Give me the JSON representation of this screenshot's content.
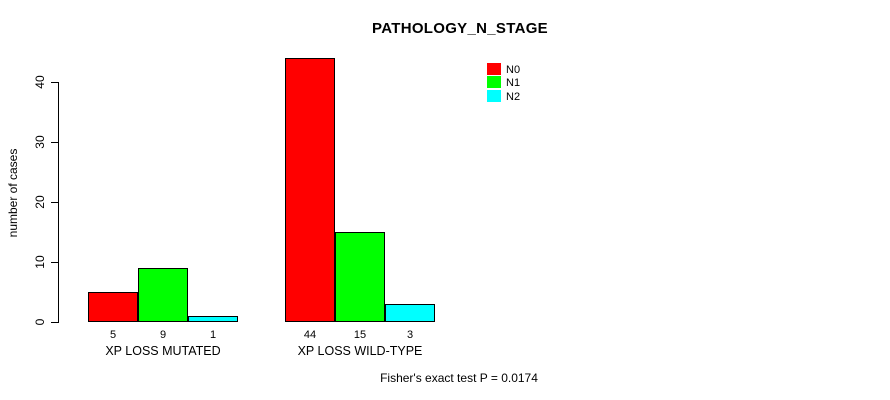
{
  "chart_data": {
    "type": "bar",
    "grouped": true,
    "title": "PATHOLOGY_N_STAGE",
    "categories": [
      "XP LOSS MUTATED",
      "XP LOSS WILD-TYPE"
    ],
    "series": [
      {
        "name": "N0",
        "color": "#FF0000",
        "values": [
          5,
          44
        ]
      },
      {
        "name": "N1",
        "color": "#00FF00",
        "values": [
          9,
          15
        ]
      },
      {
        "name": "N2",
        "color": "#00FFFF",
        "values": [
          1,
          3
        ]
      }
    ],
    "xlabel": "",
    "ylabel": "number of cases",
    "yticks": [
      0,
      10,
      20,
      30,
      40
    ],
    "ylim": [
      0,
      44
    ],
    "grid": false,
    "legend_position": "top-right",
    "bar_borders": "#000000",
    "annotation": "Fisher's exact test P = 0.0174"
  }
}
